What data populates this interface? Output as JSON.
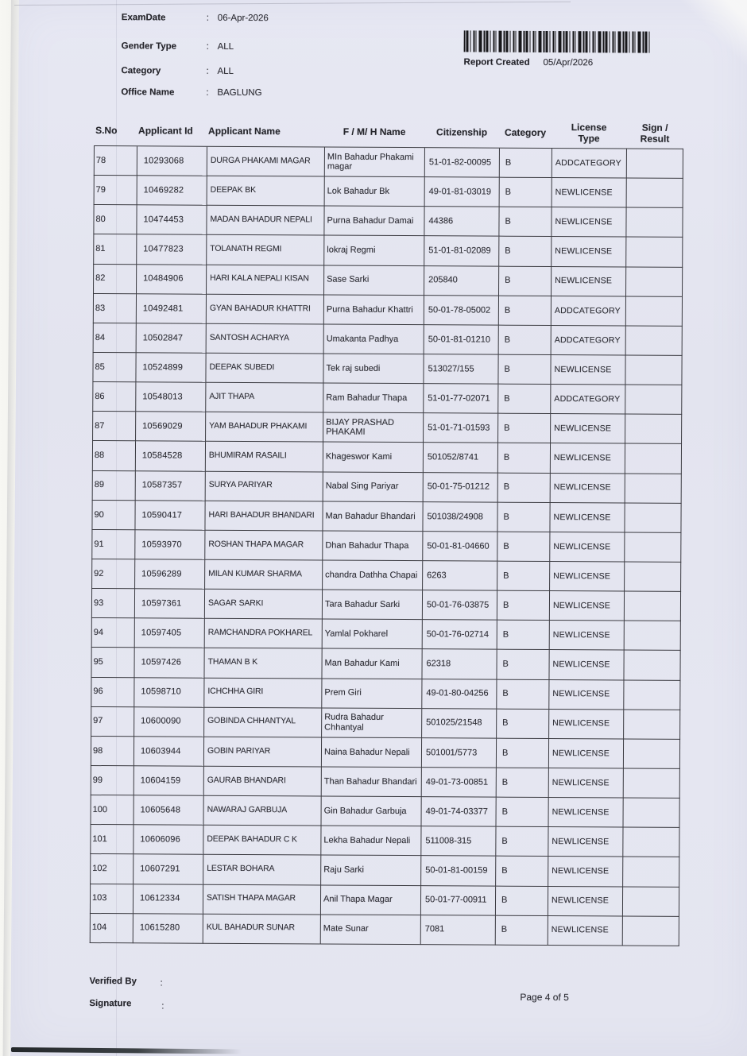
{
  "colors": {
    "paper": "#e4e5f0",
    "ink": "#2f2f36",
    "border": "#3a3a40",
    "scanner_bg": "#f5f5f1",
    "barcode": "#17171a"
  },
  "meta": {
    "rows": [
      {
        "label": "ExamDate",
        "colon": ":",
        "value": "06-Apr-2026"
      },
      {
        "label": "Gender Type",
        "colon": ":",
        "value": "ALL"
      },
      {
        "label": "Category",
        "colon": ":",
        "value": "ALL"
      },
      {
        "label": "Office Name",
        "colon": ":",
        "value": "BAGLUNG"
      }
    ],
    "report_created_label": "Report Created",
    "report_created_value": "05/Apr/2026"
  },
  "table": {
    "columns": [
      {
        "line1": "S.No",
        "line2": ""
      },
      {
        "line1": "Applicant Id",
        "line2": ""
      },
      {
        "line1": "Applicant Name",
        "line2": ""
      },
      {
        "line1": "F / M/ H Name",
        "line2": ""
      },
      {
        "line1": "Citizenship",
        "line2": ""
      },
      {
        "line1": "Category",
        "line2": ""
      },
      {
        "line1": "License",
        "line2": "Type"
      },
      {
        "line1": "Sign /",
        "line2": "Result"
      }
    ],
    "rows": [
      {
        "sno": "78",
        "id": "10293068",
        "name": "DURGA PHAKAMI MAGAR",
        "fmh": "MIn Bahadur Phakami magar",
        "citizenship": "51-01-82-00095",
        "category": "B",
        "license": "ADDCATEGORY",
        "sign": ""
      },
      {
        "sno": "79",
        "id": "10469282",
        "name": "DEEPAK  BK",
        "fmh": "Lok Bahadur Bk",
        "citizenship": "49-01-81-03019",
        "category": "B",
        "license": "NEWLICENSE",
        "sign": ""
      },
      {
        "sno": "80",
        "id": "10474453",
        "name": "MADAN BAHADUR NEPALI",
        "fmh": "Purna Bahadur Damai",
        "citizenship": "44386",
        "category": "B",
        "license": "NEWLICENSE",
        "sign": ""
      },
      {
        "sno": "81",
        "id": "10477823",
        "name": "TOLANATH  REGMI",
        "fmh": "lokraj  Regmi",
        "citizenship": "51-01-81-02089",
        "category": "B",
        "license": "NEWLICENSE",
        "sign": ""
      },
      {
        "sno": "82",
        "id": "10484906",
        "name": "HARI KALA NEPALI KISAN",
        "fmh": "Sase  Sarki",
        "citizenship": "205840",
        "category": "B",
        "license": "NEWLICENSE",
        "sign": ""
      },
      {
        "sno": "83",
        "id": "10492481",
        "name": "GYAN BAHADUR  KHATTRI",
        "fmh": "Purna Bahadur  Khattri",
        "citizenship": "50-01-78-05002",
        "category": "B",
        "license": "ADDCATEGORY",
        "sign": ""
      },
      {
        "sno": "84",
        "id": "10502847",
        "name": "SANTOSH  ACHARYA",
        "fmh": "Umakanta  Padhya",
        "citizenship": "50-01-81-01210",
        "category": "B",
        "license": "ADDCATEGORY",
        "sign": ""
      },
      {
        "sno": "85",
        "id": "10524899",
        "name": "DEEPAK  SUBEDI",
        "fmh": "Tek raj subedi",
        "citizenship": "513027/155",
        "category": "B",
        "license": "NEWLICENSE",
        "sign": ""
      },
      {
        "sno": "86",
        "id": "10548013",
        "name": "AJIT  THAPA",
        "fmh": "Ram Bahadur  Thapa",
        "citizenship": "51-01-77-02071",
        "category": "B",
        "license": "ADDCATEGORY",
        "sign": ""
      },
      {
        "sno": "87",
        "id": "10569029",
        "name": "YAM BAHADUR PHAKAMI",
        "fmh": "BIJAY PRASHAD PHAKAMI",
        "citizenship": "51-01-71-01593",
        "category": "B",
        "license": "NEWLICENSE",
        "sign": ""
      },
      {
        "sno": "88",
        "id": "10584528",
        "name": "BHUMIRAM  RASAILI",
        "fmh": "Khageswor  Kami",
        "citizenship": "501052/8741",
        "category": "B",
        "license": "NEWLICENSE",
        "sign": ""
      },
      {
        "sno": "89",
        "id": "10587357",
        "name": "SURYA  PARIYAR",
        "fmh": "Nabal Sing Pariyar",
        "citizenship": "50-01-75-01212",
        "category": "B",
        "license": "NEWLICENSE",
        "sign": ""
      },
      {
        "sno": "90",
        "id": "10590417",
        "name": "HARI BAHADUR BHANDARI",
        "fmh": "Man Bahadur Bhandari",
        "citizenship": "501038/24908",
        "category": "B",
        "license": "NEWLICENSE",
        "sign": ""
      },
      {
        "sno": "91",
        "id": "10593970",
        "name": "ROSHAN  THAPA MAGAR",
        "fmh": "Dhan Bahadur Thapa",
        "citizenship": "50-01-81-04660",
        "category": "B",
        "license": "NEWLICENSE",
        "sign": ""
      },
      {
        "sno": "92",
        "id": "10596289",
        "name": "MILAN KUMAR SHARMA",
        "fmh": "chandra Dathha Chapai",
        "citizenship": "6263",
        "category": "B",
        "license": "NEWLICENSE",
        "sign": ""
      },
      {
        "sno": "93",
        "id": "10597361",
        "name": "SAGAR  SARKI",
        "fmh": "Tara Bahadur Sarki",
        "citizenship": "50-01-76-03875",
        "category": "B",
        "license": "NEWLICENSE",
        "sign": ""
      },
      {
        "sno": "94",
        "id": "10597405",
        "name": "RAMCHANDRA  POKHAREL",
        "fmh": "Yamlal  Pokharel",
        "citizenship": "50-01-76-02714",
        "category": "B",
        "license": "NEWLICENSE",
        "sign": ""
      },
      {
        "sno": "95",
        "id": "10597426",
        "name": "THAMAN  B K",
        "fmh": "Man Bahadur Kami",
        "citizenship": "62318",
        "category": "B",
        "license": "NEWLICENSE",
        "sign": ""
      },
      {
        "sno": "96",
        "id": "10598710",
        "name": "ICHCHHA  GIRI",
        "fmh": "Prem  Giri",
        "citizenship": "49-01-80-04256",
        "category": "B",
        "license": "NEWLICENSE",
        "sign": ""
      },
      {
        "sno": "97",
        "id": "10600090",
        "name": "GOBINDA  CHHANTYAL",
        "fmh": "Rudra Bahadur Chhantyal",
        "citizenship": "501025/21548",
        "category": "B",
        "license": "NEWLICENSE",
        "sign": ""
      },
      {
        "sno": "98",
        "id": "10603944",
        "name": "GOBIN  PARIYAR",
        "fmh": "Naina Bahadur Nepali",
        "citizenship": "501001/5773",
        "category": "B",
        "license": "NEWLICENSE",
        "sign": ""
      },
      {
        "sno": "99",
        "id": "10604159",
        "name": "GAURAB  BHANDARI",
        "fmh": "Than Bahadur Bhandari",
        "citizenship": "49-01-73-00851",
        "category": "B",
        "license": "NEWLICENSE",
        "sign": ""
      },
      {
        "sno": "100",
        "id": "10605648",
        "name": "NAWARAJ  GARBUJA",
        "fmh": "Gin Bahadur Garbuja",
        "citizenship": "49-01-74-03377",
        "category": "B",
        "license": "NEWLICENSE",
        "sign": ""
      },
      {
        "sno": "101",
        "id": "10606096",
        "name": "DEEPAK BAHADUR C K",
        "fmh": "Lekha Bahadur Nepali",
        "citizenship": "511008-315",
        "category": "B",
        "license": "NEWLICENSE",
        "sign": ""
      },
      {
        "sno": "102",
        "id": "10607291",
        "name": "LESTAR  BOHARA",
        "fmh": "Raju  Sarki",
        "citizenship": "50-01-81-00159",
        "category": "B",
        "license": "NEWLICENSE",
        "sign": ""
      },
      {
        "sno": "103",
        "id": "10612334",
        "name": "SATISH THAPA MAGAR",
        "fmh": "Anil Thapa Magar",
        "citizenship": "50-01-77-00911",
        "category": "B",
        "license": "NEWLICENSE",
        "sign": ""
      },
      {
        "sno": "104",
        "id": "10615280",
        "name": "KUL BAHADUR SUNAR",
        "fmh": "Mate  Sunar",
        "citizenship": "7081",
        "category": "B",
        "license": "NEWLICENSE",
        "sign": ""
      }
    ]
  },
  "footer": {
    "verified_by_label": "Verified By",
    "verified_by_colon": ":",
    "signature_label": "Signature",
    "signature_colon": ":",
    "page_info": "Page 4 of 5"
  }
}
